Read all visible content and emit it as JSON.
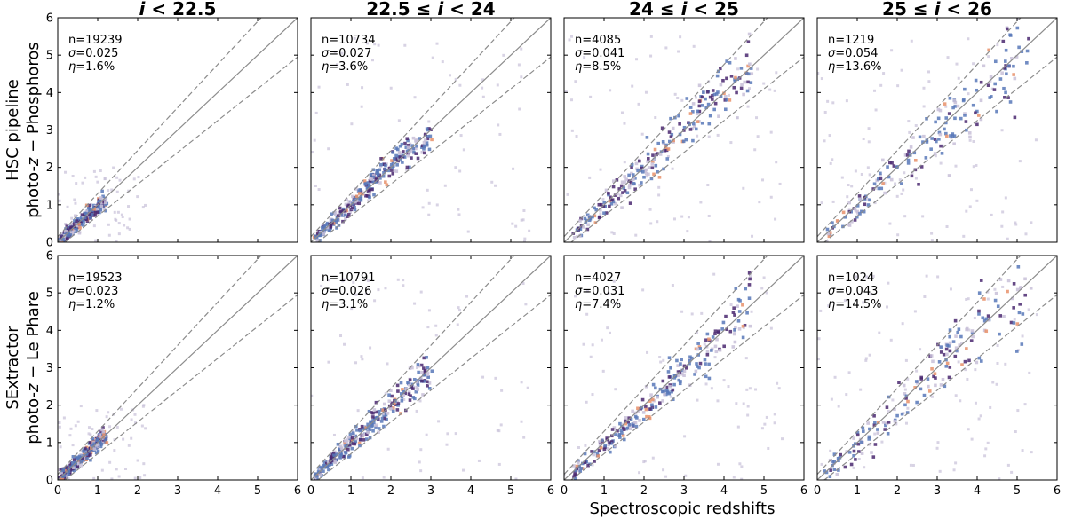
{
  "chart_data": {
    "type": "scatter",
    "title": "",
    "xlabel": "Spectroscopic redshifts",
    "xlim": [
      0,
      6
    ],
    "ylim": [
      0,
      6
    ],
    "x_ticks": [
      "0",
      "1",
      "2",
      "3",
      "4",
      "5",
      "6"
    ],
    "y_ticks": [
      "0",
      "1",
      "2",
      "3",
      "4",
      "5",
      "6"
    ],
    "grid": false,
    "reference_lines": {
      "identity": "z_phot = z_spec",
      "outlier_bounds": "z_phot = z_spec ± 0.15(1 + z_spec)"
    },
    "columns": [
      {
        "title_parts": [
          "i",
          " < 22.5"
        ]
      },
      {
        "title_parts": [
          "22.5 ≤ ",
          "i",
          " < 24"
        ]
      },
      {
        "title_parts": [
          "24 ≤ ",
          "i",
          " < 25"
        ]
      },
      {
        "title_parts": [
          "25 ≤ ",
          "i",
          " < 26"
        ]
      }
    ],
    "rows": [
      {
        "label_line1": "HSC pipeline",
        "label_line2_parts": [
          "photo-",
          "z",
          " − Phosphoros"
        ]
      },
      {
        "label_line1": "SExtractor",
        "label_line2_parts": [
          "photo-",
          "z",
          " − Le Phare"
        ]
      }
    ],
    "panels": [
      {
        "row": 0,
        "col": 0,
        "n": "n=19239",
        "sigma": "σ=0.025",
        "eta": "η=1.6%",
        "core": [
          [
            0.05,
            0.05
          ],
          [
            0.5,
            0.5
          ],
          [
            1.2,
            1.1
          ]
        ],
        "spread": 0.05
      },
      {
        "row": 0,
        "col": 1,
        "n": "n=10734",
        "sigma": "σ=0.027",
        "eta": "η=3.6%",
        "core": [
          [
            0.1,
            0.1
          ],
          [
            1.0,
            1.0
          ],
          [
            1.8,
            1.9
          ],
          [
            3.0,
            2.9
          ]
        ],
        "spread": 0.06
      },
      {
        "row": 0,
        "col": 2,
        "n": "n=4085",
        "sigma": "σ=0.041",
        "eta": "η=8.5%",
        "core": [
          [
            0.2,
            0.2
          ],
          [
            1.5,
            1.4
          ],
          [
            2.5,
            2.5
          ],
          [
            3.5,
            3.7
          ],
          [
            4.7,
            4.8
          ]
        ],
        "spread": 0.08
      },
      {
        "row": 0,
        "col": 3,
        "n": "n=1219",
        "sigma": "σ=0.054",
        "eta": "η=13.6%",
        "core": [
          [
            0.2,
            0.2
          ],
          [
            1.5,
            1.4
          ],
          [
            3.0,
            3.0
          ],
          [
            4.0,
            3.9
          ],
          [
            5.3,
            5.3
          ]
        ],
        "spread": 0.1
      },
      {
        "row": 1,
        "col": 0,
        "n": "n=19523",
        "sigma": "σ=0.023",
        "eta": "η=1.2%",
        "core": [
          [
            0.05,
            0.05
          ],
          [
            0.6,
            0.6
          ],
          [
            1.2,
            1.2
          ]
        ],
        "spread": 0.05
      },
      {
        "row": 1,
        "col": 1,
        "n": "n=10791",
        "sigma": "σ=0.026",
        "eta": "η=3.1%",
        "core": [
          [
            0.1,
            0.1
          ],
          [
            1.0,
            1.0
          ],
          [
            2.0,
            2.0
          ],
          [
            3.0,
            2.9
          ]
        ],
        "spread": 0.06
      },
      {
        "row": 1,
        "col": 2,
        "n": "n=4027",
        "sigma": "σ=0.031",
        "eta": "η=7.4%",
        "core": [
          [
            0.2,
            0.2
          ],
          [
            1.5,
            1.4
          ],
          [
            2.5,
            2.4
          ],
          [
            3.5,
            3.4
          ],
          [
            4.7,
            4.7
          ]
        ],
        "spread": 0.07
      },
      {
        "row": 1,
        "col": 3,
        "n": "n=1024",
        "sigma": "σ=0.043",
        "eta": "η=14.5%",
        "core": [
          [
            0.2,
            0.2
          ],
          [
            1.5,
            1.4
          ],
          [
            3.0,
            3.0
          ],
          [
            4.0,
            4.0
          ],
          [
            5.3,
            5.2
          ]
        ],
        "spread": 0.1
      }
    ]
  },
  "colors": {
    "identity_line": "#8c8c8c",
    "bound_line": "#8c8c8c",
    "hex_low": "#c8c0d8",
    "hex_mid": "#5878b8",
    "hex_high": "#4a2870",
    "hex_peak": "#e8906a"
  }
}
